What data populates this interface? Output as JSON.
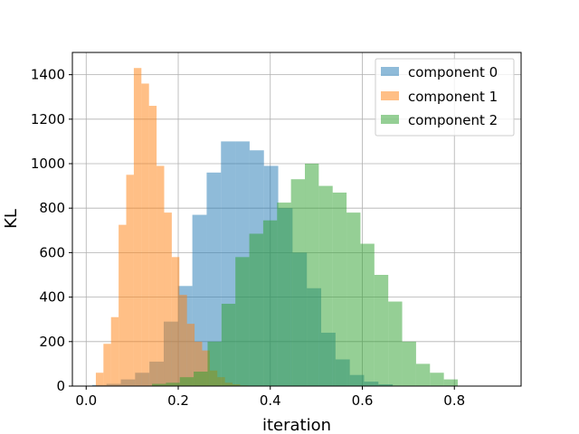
{
  "chart_data": {
    "type": "histogram",
    "title": "",
    "xlabel": "iteration",
    "ylabel": "KL",
    "xlim": [
      -0.03,
      0.945
    ],
    "ylim": [
      0,
      1500
    ],
    "xticks": [
      0.0,
      0.2,
      0.4,
      0.6,
      0.8
    ],
    "xtick_labels": [
      "0.0",
      "0.2",
      "0.4",
      "0.6",
      "0.8"
    ],
    "yticks": [
      0,
      200,
      400,
      600,
      800,
      1000,
      1200,
      1400
    ],
    "ytick_labels": [
      "0",
      "200",
      "400",
      "600",
      "800",
      "1000",
      "1200",
      "1400"
    ],
    "grid": true,
    "legend_position": "top-right",
    "series": [
      {
        "name": "component 0",
        "color": "#1f77b4",
        "opacity": 0.5,
        "bin_start": 0.013,
        "bin_width": 0.0311,
        "values": [
          5,
          10,
          30,
          60,
          110,
          290,
          450,
          770,
          960,
          1100,
          1100,
          1060,
          990,
          800,
          600,
          440,
          240,
          120,
          50,
          20,
          8,
          2
        ]
      },
      {
        "name": "component 1",
        "color": "#ff7f0e",
        "opacity": 0.5,
        "bin_start": 0.021,
        "bin_width": 0.0165,
        "values": [
          60,
          190,
          310,
          725,
          950,
          1430,
          1360,
          1260,
          990,
          780,
          580,
          410,
          280,
          200,
          160,
          70,
          40,
          15,
          8,
          3
        ]
      },
      {
        "name": "component 2",
        "color": "#2ca02c",
        "opacity": 0.5,
        "bin_start": 0.143,
        "bin_width": 0.0302,
        "values": [
          10,
          15,
          40,
          65,
          200,
          370,
          580,
          685,
          745,
          825,
          930,
          1000,
          900,
          870,
          780,
          640,
          500,
          380,
          200,
          100,
          60,
          30
        ]
      }
    ]
  }
}
